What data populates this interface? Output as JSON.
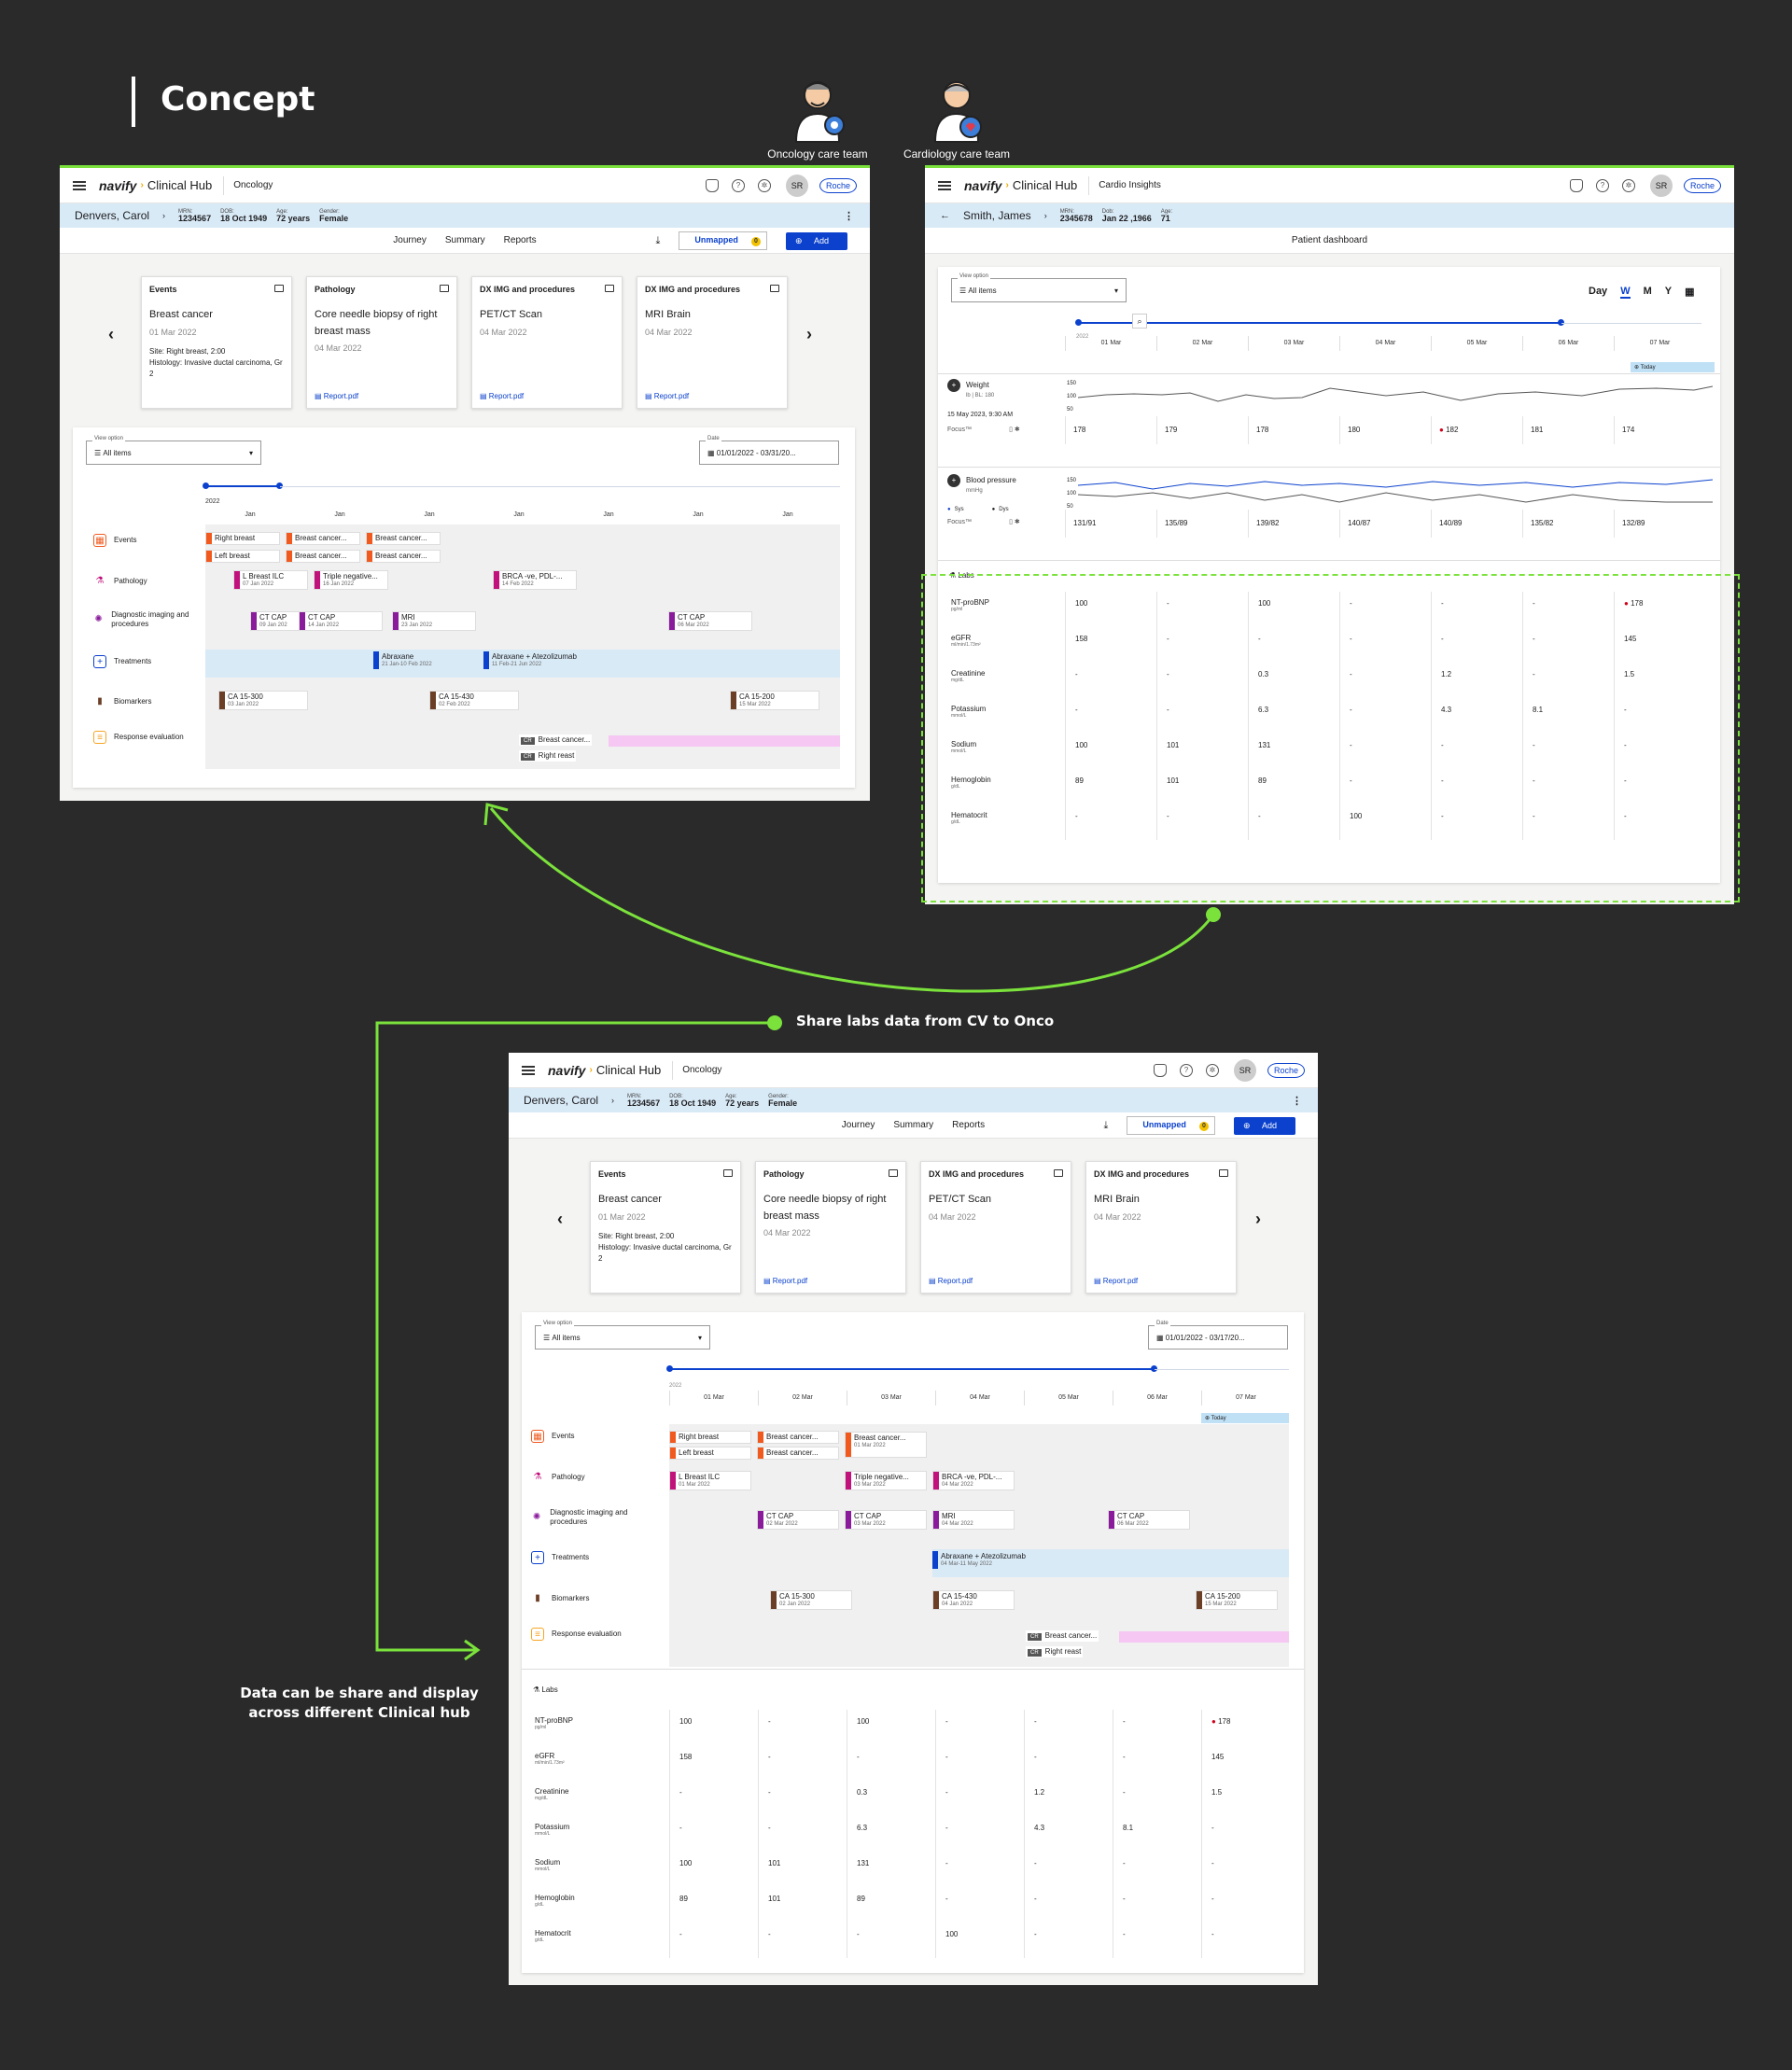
{
  "heading": "Concept",
  "personas": [
    {
      "label": "Oncology care team",
      "icon": "doctor-virus-icon"
    },
    {
      "label": "Cardiology care team",
      "icon": "doctor-heart-icon"
    }
  ],
  "captions": {
    "share": "Share labs data from CV to Onco",
    "display": "Data can be share and display across  different Clinical hub"
  },
  "app": {
    "logo": "navify",
    "hub": "Clinical Hub",
    "user_initials": "SR",
    "brand": "Roche",
    "nav_tabs": [
      "Journey",
      "Summary",
      "Reports"
    ],
    "unmapped_label": "Unmapped",
    "unmapped_count": "0",
    "add_label": "Add"
  },
  "onco": {
    "module": "Oncology",
    "patient_name": "Denvers,  Carol",
    "mrn_label": "MRN:",
    "mrn": "1234567",
    "dob_label": "DOB:",
    "dob": "18 Oct 1949",
    "age_label": "Age:",
    "age": "72 years",
    "gender_label": "Gender:",
    "gender": "Female",
    "cards": [
      {
        "header": "Events",
        "title": "Breast cancer",
        "date": "01 Mar 2022",
        "extra1": "Site: Right breast, 2:00",
        "extra2": "Histology: Invasive ductal carcinoma, Gr 2",
        "report": ""
      },
      {
        "header": "Pathology",
        "title": "Core needle biopsy of right breast mass",
        "date": "04 Mar 2022",
        "extra1": "",
        "extra2": "",
        "report": "Report.pdf"
      },
      {
        "header": "DX IMG and procedures",
        "title": "PET/CT Scan",
        "date": "04 Mar 2022",
        "extra1": "",
        "extra2": "",
        "report": "Report.pdf"
      },
      {
        "header": "DX IMG and procedures",
        "title": "MRI Brain",
        "date": "04 Mar 2022",
        "extra1": "",
        "extra2": "",
        "report": "Report.pdf"
      }
    ],
    "view_option_label": "View option",
    "view_option": "All items",
    "date_label": "Date",
    "date_range_1": "01/01/2022 - 03/31/20...",
    "date_range_2": "01/01/2022 - 03/17/20...",
    "year": "2022",
    "months_1": [
      "Jan",
      "Jan",
      "Jan",
      "Jan",
      "Jan",
      "Jan",
      "Jan"
    ],
    "days": [
      "01 Mar",
      "02 Mar",
      "03 Mar",
      "04 Mar",
      "05 Mar",
      "06 Mar",
      "07 Mar"
    ],
    "today": "Today",
    "rows": [
      "Events",
      "Pathology",
      "Diagnostic imaging and procedures",
      "Treatments",
      "Biomarkers",
      "Response evaluation"
    ],
    "labs_label": "Labs"
  },
  "timeline1": {
    "events": [
      "Right breast",
      "Breast cancer...",
      "Breast cancer...",
      "Left breast",
      "Breast cancer...",
      "Breast cancer..."
    ],
    "pathology": [
      {
        "t": "L Breast ILC",
        "d": "07 Jan 2022"
      },
      {
        "t": "Triple negative...",
        "d": "16 Jan 2022"
      },
      {
        "t": "BRCA -ve, PDL-...",
        "d": "14 Feb 2022"
      }
    ],
    "imaging": [
      {
        "t": "CT CAP",
        "d": "09 Jan 202"
      },
      {
        "t": "CT CAP",
        "d": "14 Jan 2022"
      },
      {
        "t": "MRI",
        "d": "23 Jan 2022"
      },
      {
        "t": "CT CAP",
        "d": "06 Mar 2022"
      }
    ],
    "treatments": [
      {
        "t": "Abraxane",
        "d": "21 Jan-10 Feb 2022"
      },
      {
        "t": "Abraxane + Atezolizumab",
        "d": "11 Feb-21 Jun 2022"
      }
    ],
    "biomarkers": [
      {
        "t": "CA 15-300",
        "d": "03 Jan 2022"
      },
      {
        "t": "CA 15-430",
        "d": "02 Feb 2022"
      },
      {
        "t": "CA 15-200",
        "d": "15 Mar 2022"
      }
    ],
    "response": [
      {
        "tag": "CR",
        "t": "Breast cancer..."
      },
      {
        "tag": "CR",
        "t": "Right reast"
      }
    ]
  },
  "timeline3": {
    "events": [
      "Right breast",
      "Breast cancer...",
      "Breast cancer...",
      "Left breast",
      "Breast cancer..."
    ],
    "pathology": [
      {
        "t": "L Breast ILC",
        "d": "01 Mar 2022"
      },
      {
        "t": "Triple negative...",
        "d": "03 Mar 2022"
      },
      {
        "t": "BRCA -ve, PDL-...",
        "d": "04 Mar 2022"
      }
    ],
    "imaging": [
      {
        "t": "CT CAP",
        "d": "02 Mar 2022"
      },
      {
        "t": "CT CAP",
        "d": "03 Mar 2022"
      },
      {
        "t": "MRI",
        "d": "04 Mar 2022"
      },
      {
        "t": "CT CAP",
        "d": "06 Mar 2022"
      }
    ],
    "treatments": [
      {
        "t": "Abraxane + Atezolizumab",
        "d": "04 Mar-11 May 2022"
      }
    ],
    "biomarkers": [
      {
        "t": "CA 15-300",
        "d": "02 Jan 2022"
      },
      {
        "t": "CA 15-430",
        "d": "04 Jan 2022"
      },
      {
        "t": "CA 15-200",
        "d": "15 Mar 2022"
      }
    ]
  },
  "cardio": {
    "module": "Cardio Insights",
    "patient_name": "Smith,  James",
    "mrn_label": "MRN:",
    "mrn": "2345678",
    "dob_label": "Dob:",
    "dob": "Jan 22 ,1966",
    "age_label": "Age:",
    "age": "71",
    "tab": "Patient dashboard",
    "scale": [
      "Day",
      "W",
      "M",
      "Y"
    ],
    "weight": {
      "name": "Weight",
      "unit": "lb | BL: 180",
      "date": "15 May 2023, 9:30 AM",
      "source": "Focus™",
      "values": [
        "178",
        "179",
        "178",
        "180",
        "182",
        "181",
        "174"
      ],
      "axis": [
        "150",
        "100",
        "50"
      ]
    },
    "bp": {
      "name": "Blood pressure",
      "unit": "mmHg",
      "sys": "Sys",
      "dia": "Dys",
      "source": "Focus™",
      "values": [
        "131/91",
        "135/89",
        "139/82",
        "140/87",
        "140/89",
        "135/82",
        "132/89"
      ],
      "axis": [
        "150",
        "100",
        "50"
      ]
    }
  },
  "labs": [
    {
      "name": "NT-proBNP",
      "unit": "pg/ml",
      "values": [
        "100",
        "-",
        "100",
        "-",
        "-",
        "-",
        "178"
      ]
    },
    {
      "name": "eGFR",
      "unit": "ml/min/1.73m²",
      "values": [
        "158",
        "-",
        "-",
        "-",
        "-",
        "-",
        "145"
      ]
    },
    {
      "name": "Creatinine",
      "unit": "mg/dL",
      "values": [
        "-",
        "-",
        "0.3",
        "-",
        "1.2",
        "-",
        "1.5"
      ]
    },
    {
      "name": "Potassium",
      "unit": "mmol/L",
      "values": [
        "-",
        "-",
        "6.3",
        "-",
        "4.3",
        "8.1",
        "-"
      ]
    },
    {
      "name": "Sodium",
      "unit": "mmol/L",
      "values": [
        "100",
        "101",
        "131",
        "-",
        "-",
        "-",
        "-"
      ]
    },
    {
      "name": "Hemoglobin",
      "unit": "g/dL",
      "values": [
        "89",
        "101",
        "89",
        "-",
        "-",
        "-",
        "-"
      ]
    },
    {
      "name": "Hematocrit",
      "unit": "g/dL",
      "values": [
        "-",
        "-",
        "-",
        "100",
        "-",
        "-",
        "-"
      ]
    }
  ],
  "colors": {
    "accent": "#7be23c",
    "primary": "#0b41cd",
    "events": "#f05a1f",
    "pathology": "#c1117b",
    "imaging": "#8a1c9c",
    "treatments": "#0b41cd",
    "biomarkers": "#6b3e26",
    "response": "#f5c7f2"
  }
}
